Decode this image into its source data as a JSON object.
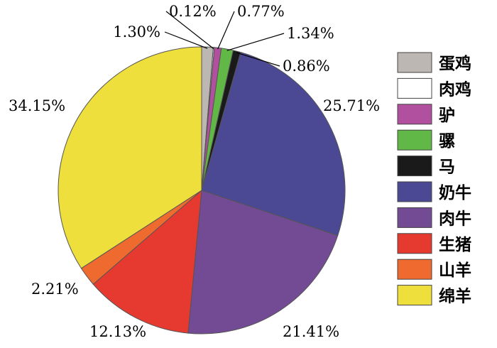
{
  "chart_data": {
    "type": "pie",
    "title": "",
    "legend_position": "right",
    "slices": [
      {
        "name": "蛋鸡",
        "value": 1.3,
        "label": "1.30%",
        "color": "#bdb7b3"
      },
      {
        "name": "肉鸡",
        "value": 0.12,
        "label": "0.12%",
        "color": "#ffffff"
      },
      {
        "name": "驴",
        "value": 0.77,
        "label": "0.77%",
        "color": "#b0509e"
      },
      {
        "name": "骡",
        "value": 1.34,
        "label": "1.34%",
        "color": "#62b846"
      },
      {
        "name": "马",
        "value": 0.86,
        "label": "0.86%",
        "color": "#1a1a1a"
      },
      {
        "name": "奶牛",
        "value": 25.71,
        "label": "25.71%",
        "color": "#4b4894"
      },
      {
        "name": "肉牛",
        "value": 21.41,
        "label": "21.41%",
        "color": "#734a94"
      },
      {
        "name": "生猪",
        "value": 12.13,
        "label": "12.13%",
        "color": "#e63a30"
      },
      {
        "name": "山羊",
        "value": 2.21,
        "label": "2.21%",
        "color": "#ee6a2f"
      },
      {
        "name": "绵羊",
        "value": 34.15,
        "label": "34.15%",
        "color": "#eedf3c"
      }
    ]
  }
}
